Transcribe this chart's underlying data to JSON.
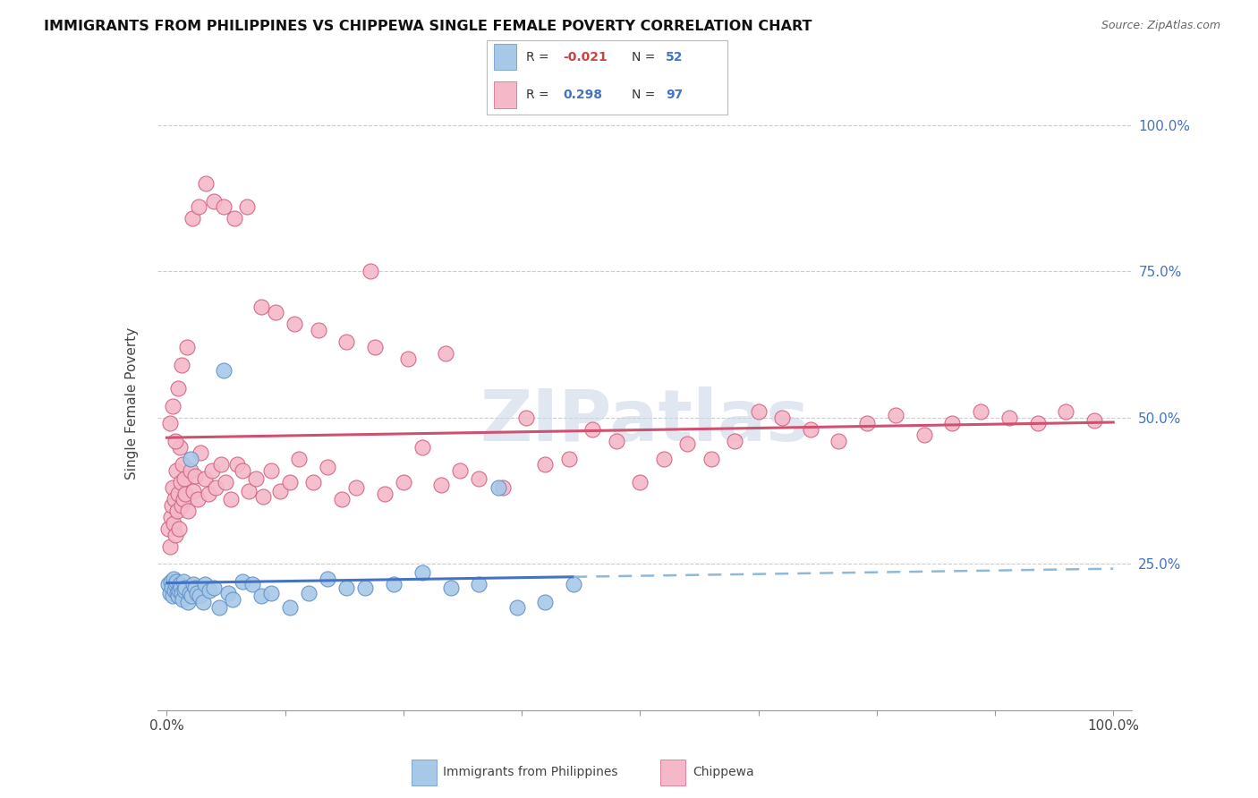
{
  "title": "IMMIGRANTS FROM PHILIPPINES VS CHIPPEWA SINGLE FEMALE POVERTY CORRELATION CHART",
  "source": "Source: ZipAtlas.com",
  "ylabel": "Single Female Poverty",
  "legend_label1": "Immigrants from Philippines",
  "legend_label2": "Chippewa",
  "r1": "-0.021",
  "n1": "52",
  "r2": "0.298",
  "n2": "97",
  "color_blue": "#a8c8e8",
  "color_pink": "#f5b8c8",
  "color_blue_dark": "#6090c8",
  "color_pink_dark": "#d06080",
  "line_blue": "#4472c4",
  "line_pink": "#d05070",
  "line_dashed_color": "#90b8d8",
  "watermark_color": "#ccd8e8"
}
